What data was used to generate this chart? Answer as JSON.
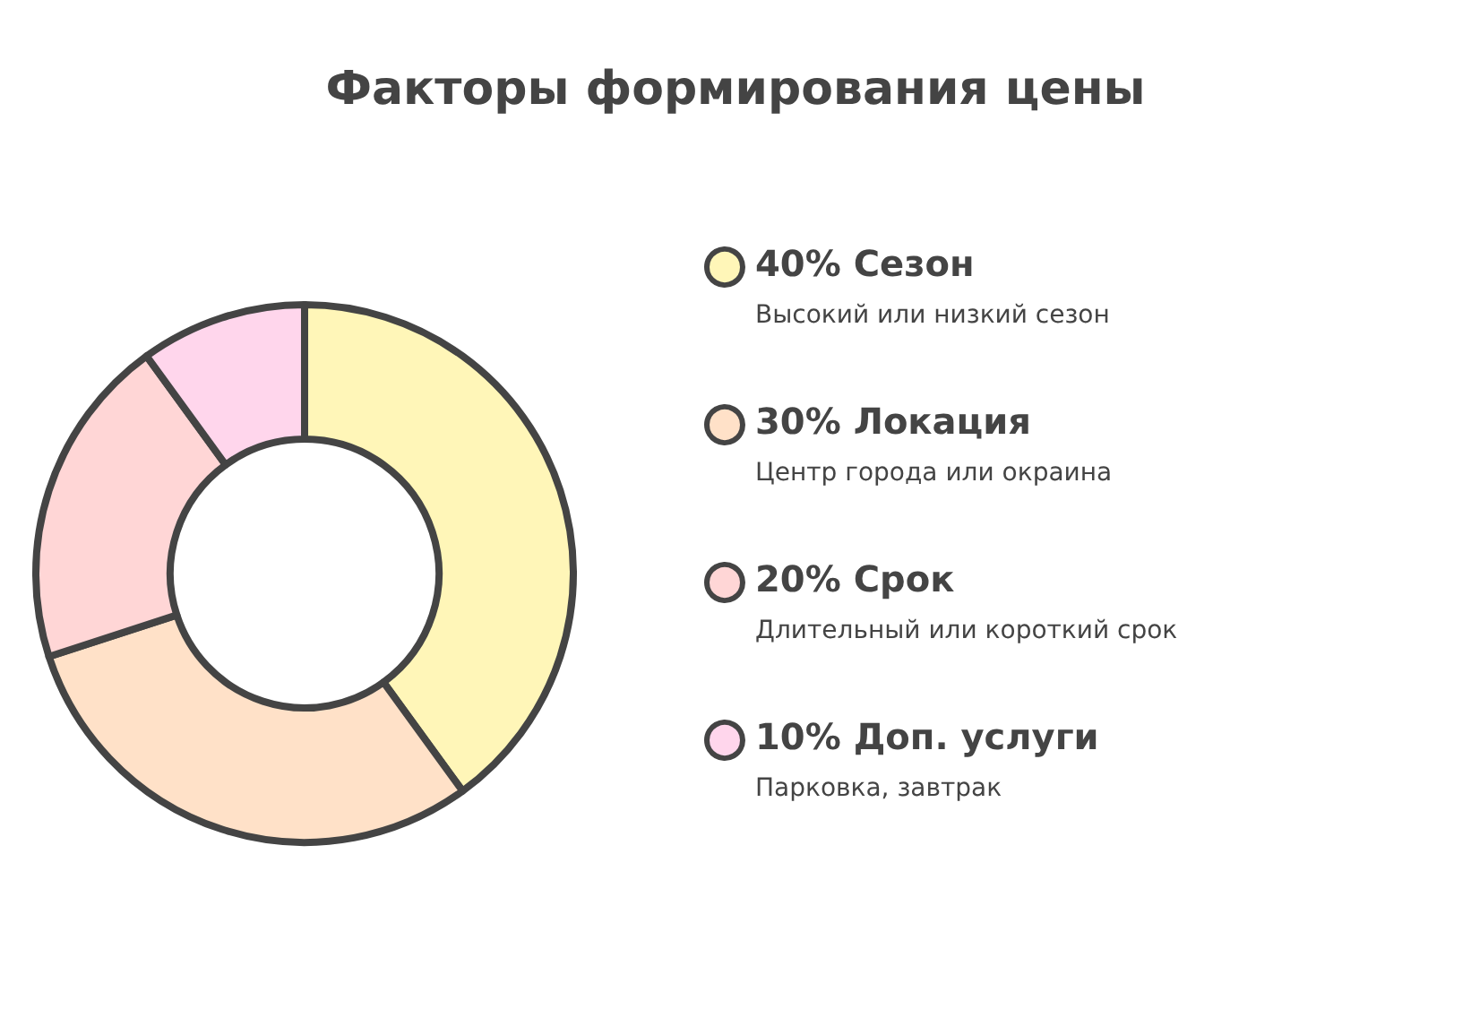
{
  "chart_data": {
    "type": "donut",
    "title": "Факторы формирования цены",
    "categories": [
      "Сезон",
      "Локация",
      "Срок",
      "Доп. услуги"
    ],
    "values": [
      40,
      30,
      20,
      10
    ],
    "value_labels": [
      "40%",
      "30%",
      "20%",
      "10%"
    ],
    "colors": [
      "#fff6b8",
      "#ffe1c8",
      "#ffd6d6",
      "#ffd6ec"
    ],
    "annotations": [
      "Высокий или низкий сезон",
      "Центр города или окраина",
      "Длительный или короткий срок",
      "Парковка, завтрак"
    ],
    "legend": "right"
  }
}
